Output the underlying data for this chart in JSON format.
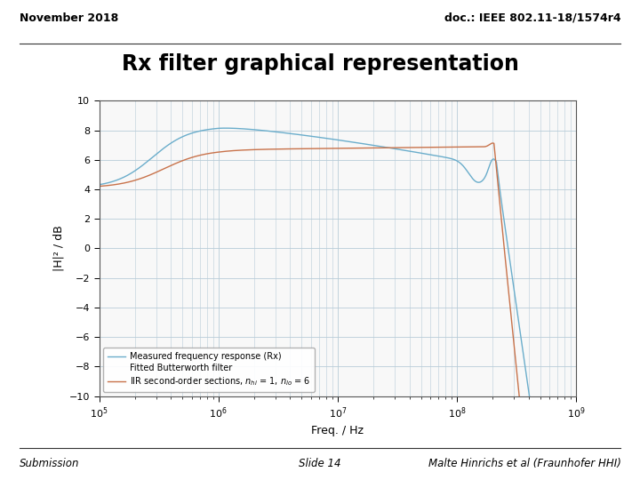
{
  "header_left": "November 2018",
  "header_right": "doc.: IEEE 802.11-18/1574r4",
  "title": "Rx filter graphical representation",
  "footer_left": "Submission",
  "footer_center": "Slide 14",
  "footer_right": "Malte Hinrichs et al (Fraunhofer HHI)",
  "xlabel": "Freq. / Hz",
  "ylabel": "|H|² / dB",
  "xlim": [
    100000.0,
    1000000000.0
  ],
  "ylim": [
    -10,
    10
  ],
  "yticks": [
    -10,
    -8,
    -6,
    -4,
    -2,
    0,
    2,
    4,
    6,
    8,
    10
  ],
  "legend_line1": "Measured frequency response (Rx)",
  "legend_line2": "Fitted Butterworth filter",
  "legend_line3": "IIR second-order sections, n_hi = 1, n_lo = 6",
  "blue_color": "#6aadcb",
  "orange_color": "#c8724a",
  "plot_bg": "#f8f8f8",
  "grid_color": "#b8ccd8",
  "header_line_color": "#333333",
  "footer_line_color": "#333333"
}
